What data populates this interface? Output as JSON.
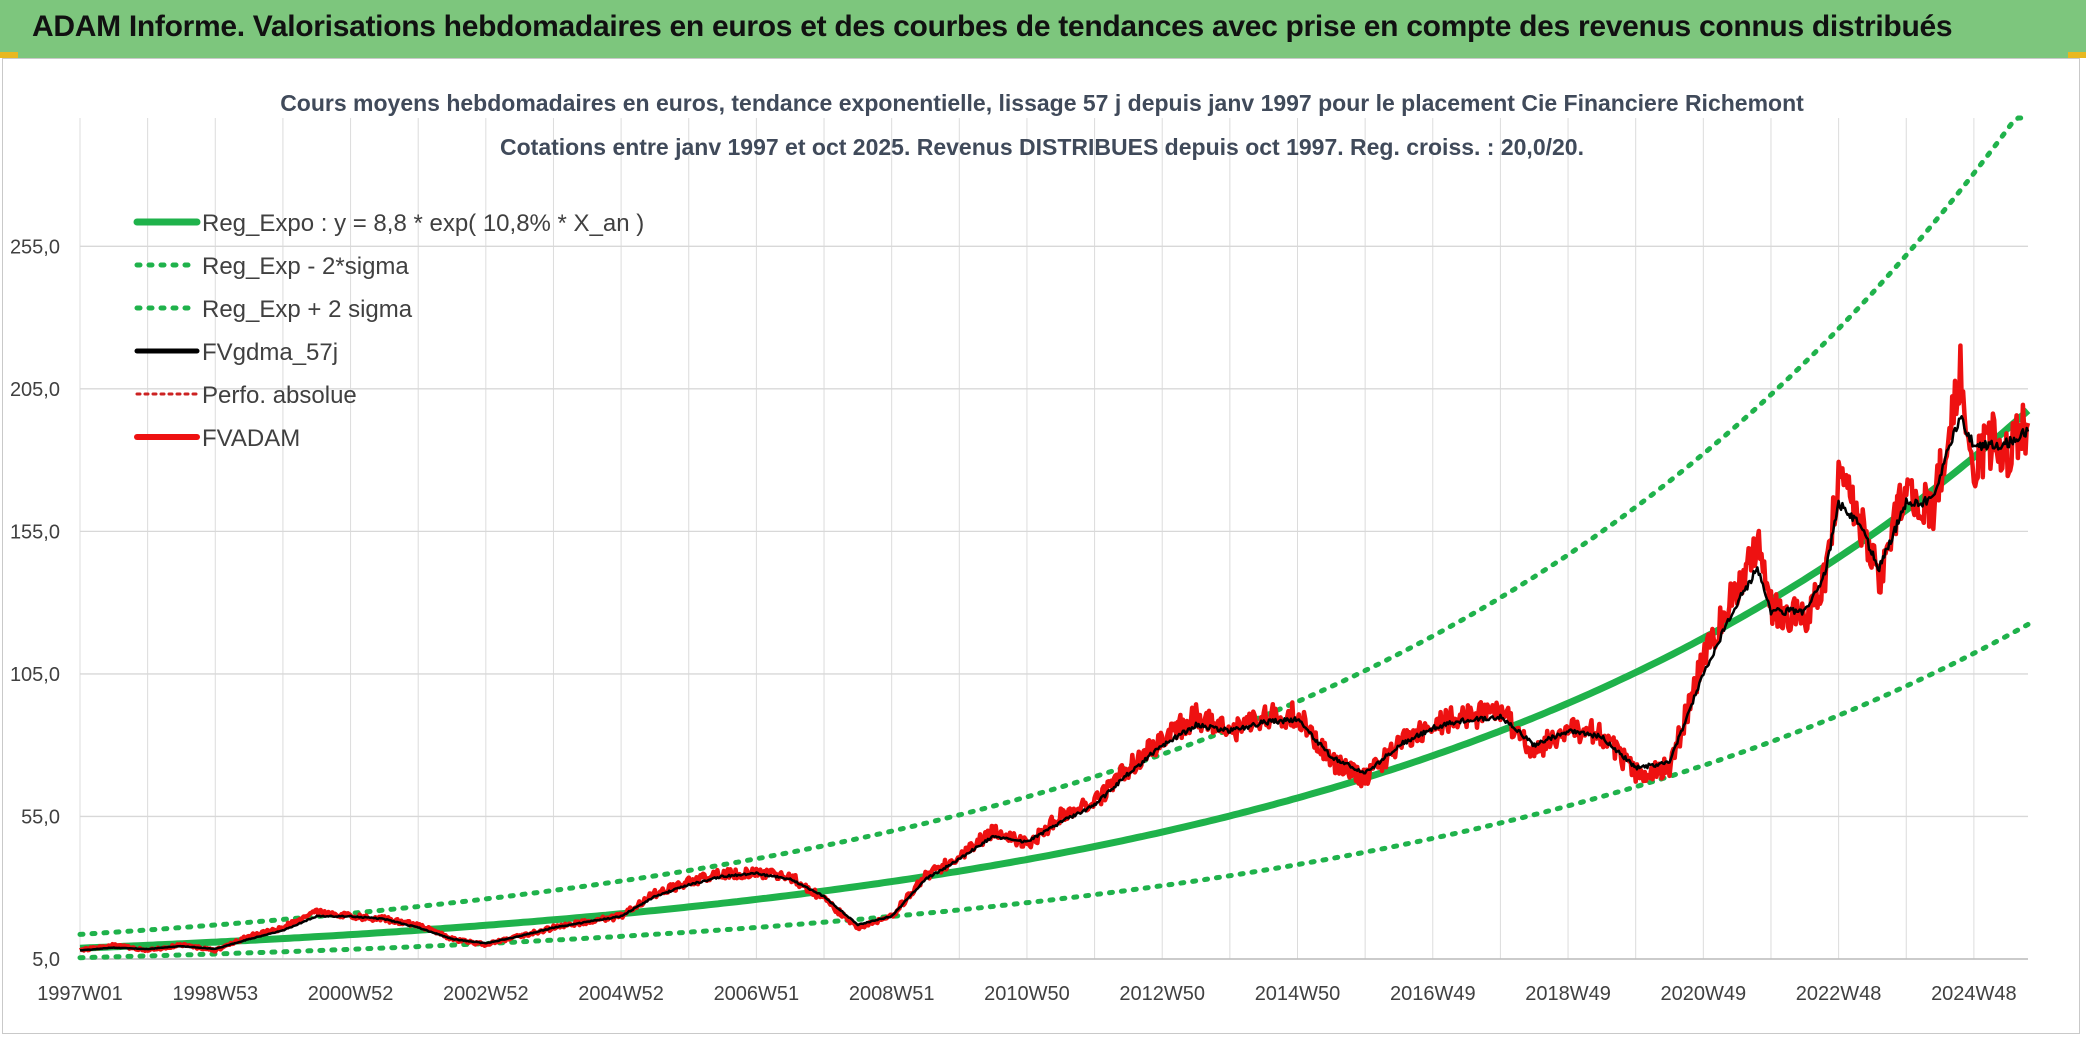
{
  "banner": {
    "title": "ADAM Informe. Valorisations hebdomadaires en euros et des courbes de tendances avec prise en compte des revenus connus distribués"
  },
  "colors": {
    "banner_bg": "#7dc67d",
    "trend": "#1fb24b",
    "smooth": "#000000",
    "adam": "#ee1111",
    "perf": "#cc2222"
  },
  "chart_data": {
    "type": "line",
    "title": "Cours moyens hebdomadaires en euros, tendance exponentielle, lissage 57 j depuis janv 1997 pour le placement Cie Financiere Richemont",
    "subtitle": "Cotations entre janv 1997 et oct 2025. Revenus DISTRIBUES depuis oct 1997. Reg. croiss. : 20,0/20.",
    "xlabel": "",
    "ylabel": "",
    "xlim": [
      1997.0,
      2025.8
    ],
    "ylim": [
      5,
      300
    ],
    "y_ticks": [
      "5,0",
      "55,0",
      "105,0",
      "155,0",
      "205,0",
      "255,0"
    ],
    "y_tick_values": [
      5,
      55,
      105,
      155,
      205,
      255
    ],
    "x_ticks": [
      "1997W01",
      "1998W53",
      "2000W52",
      "2002W52",
      "2004W52",
      "2006W51",
      "2008W51",
      "2010W50",
      "2012W50",
      "2014W50",
      "2016W49",
      "2018W49",
      "2020W49",
      "2022W48",
      "2024W48"
    ],
    "x_tick_years": [
      1997.0,
      1999.0,
      2001.0,
      2003.0,
      2005.0,
      2007.0,
      2009.0,
      2011.0,
      2013.0,
      2015.0,
      2017.0,
      2019.0,
      2021.0,
      2023.0,
      2025.0
    ],
    "grid": true,
    "legend_position": "top-left",
    "legend": [
      {
        "key": "reg_expo",
        "label": "Reg_Expo : y = 8,8 * exp( 10,8% *  X_an )"
      },
      {
        "key": "reg_minus",
        "label": "Reg_Exp - 2*sigma"
      },
      {
        "key": "reg_plus",
        "label": "Reg_Exp + 2 sigma"
      },
      {
        "key": "fvgdma",
        "label": "FVgdma_57j"
      },
      {
        "key": "perfo",
        "label": "Perfo. absolue"
      },
      {
        "key": "fvadam",
        "label": "FVADAM"
      }
    ],
    "trend_model": {
      "a": 8.8,
      "growth": 0.108,
      "upper_factor": 1.55,
      "lower_factor": 0.62
    },
    "series": [
      {
        "name": "FVADAM",
        "x": [
          1997.0,
          1997.5,
          1998.0,
          1998.5,
          1999.0,
          1999.5,
          2000.0,
          2000.5,
          2001.0,
          2001.5,
          2002.0,
          2002.5,
          2003.0,
          2003.5,
          2004.0,
          2004.5,
          2005.0,
          2005.5,
          2006.0,
          2006.5,
          2007.0,
          2007.5,
          2008.0,
          2008.5,
          2009.0,
          2009.5,
          2010.0,
          2010.5,
          2011.0,
          2011.5,
          2012.0,
          2012.5,
          2013.0,
          2013.5,
          2014.0,
          2014.5,
          2015.0,
          2015.5,
          2016.0,
          2016.5,
          2017.0,
          2017.5,
          2018.0,
          2018.5,
          2019.0,
          2019.5,
          2020.0,
          2020.5,
          2021.0,
          2021.5,
          2021.8,
          2022.0,
          2022.5,
          2022.8,
          2023.0,
          2023.3,
          2023.6,
          2024.0,
          2024.2,
          2024.4,
          2024.6,
          2024.8,
          2025.0,
          2025.3,
          2025.5,
          2025.8
        ],
        "values": [
          8,
          10,
          8,
          10,
          8,
          13,
          16,
          22,
          20,
          19,
          17,
          12,
          10,
          13,
          16,
          18,
          20,
          28,
          32,
          35,
          35,
          34,
          26,
          16,
          20,
          34,
          41,
          50,
          45,
          55,
          60,
          72,
          82,
          90,
          85,
          90,
          91,
          74,
          68,
          80,
          88,
          90,
          92,
          78,
          86,
          84,
          70,
          72,
          110,
          135,
          150,
          128,
          125,
          140,
          172,
          160,
          138,
          172,
          165,
          162,
          188,
          210,
          178,
          188,
          182,
          193
        ]
      },
      {
        "name": "FVgdma_57j",
        "x": [
          1997.0,
          1997.5,
          1998.0,
          1998.5,
          1999.0,
          1999.5,
          2000.0,
          2000.5,
          2001.0,
          2001.5,
          2002.0,
          2002.5,
          2003.0,
          2003.5,
          2004.0,
          2004.5,
          2005.0,
          2005.5,
          2006.0,
          2006.5,
          2007.0,
          2007.5,
          2008.0,
          2008.5,
          2009.0,
          2009.5,
          2010.0,
          2010.5,
          2011.0,
          2011.5,
          2012.0,
          2012.5,
          2013.0,
          2013.5,
          2014.0,
          2014.5,
          2015.0,
          2015.5,
          2016.0,
          2016.5,
          2017.0,
          2017.5,
          2018.0,
          2018.5,
          2019.0,
          2019.5,
          2020.0,
          2020.5,
          2021.0,
          2021.5,
          2021.8,
          2022.0,
          2022.5,
          2022.8,
          2023.0,
          2023.3,
          2023.6,
          2024.0,
          2024.2,
          2024.4,
          2024.6,
          2024.8,
          2025.0,
          2025.3,
          2025.5,
          2025.8
        ],
        "values": [
          8,
          9,
          8.5,
          9.5,
          8.5,
          12,
          15,
          20,
          20,
          19,
          16,
          12,
          10.5,
          13,
          16,
          18,
          20,
          27,
          31,
          34,
          35,
          33,
          27,
          17,
          20,
          33,
          40,
          48,
          46,
          53,
          59,
          70,
          80,
          87,
          85,
          88,
          89,
          76,
          70,
          80,
          86,
          89,
          90,
          80,
          85,
          83,
          72,
          74,
          105,
          130,
          142,
          127,
          127,
          140,
          165,
          158,
          142,
          165,
          165,
          166,
          182,
          195,
          185,
          185,
          186,
          190
        ]
      }
    ]
  }
}
